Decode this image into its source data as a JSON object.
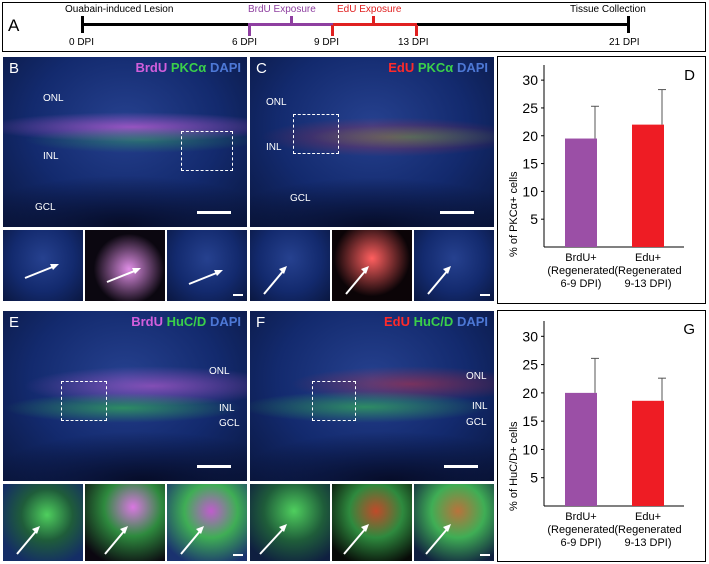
{
  "timeline": {
    "letter": "A",
    "events": [
      {
        "label": "Ouabain-induced Lesion"
      },
      {
        "label": "BrdU Exposure"
      },
      {
        "label": "EdU Exposure"
      },
      {
        "label": "Tissue Collection"
      }
    ],
    "ticks": [
      "0 DPI",
      "6 DPI",
      "9 DPI",
      "13 DPI",
      "21 DPI"
    ],
    "colors": {
      "brdu": "#8e3fa0",
      "edu": "#e02020"
    }
  },
  "panels": {
    "B": {
      "letter": "B",
      "stain1": "BrdU",
      "stain2": "PKCα",
      "stain3": "DAPI",
      "layers": [
        "ONL",
        "INL",
        "GCL"
      ]
    },
    "C": {
      "letter": "C",
      "stain1": "EdU",
      "stain2": "PKCα",
      "stain3": "DAPI",
      "layers": [
        "ONL",
        "INL",
        "GCL"
      ]
    },
    "E": {
      "letter": "E",
      "stain1": "BrdU",
      "stain2": "HuC/D",
      "stain3": "DAPI",
      "layers": [
        "ONL",
        "INL",
        "GCL"
      ]
    },
    "F": {
      "letter": "F",
      "stain1": "EdU",
      "stain2": "HuC/D",
      "stain3": "DAPI",
      "layers": [
        "ONL",
        "INL",
        "GCL"
      ]
    }
  },
  "chart_data": [
    {
      "type": "bar",
      "panel": "D",
      "ylabel": "% of PKCα+ cells",
      "categories": [
        "BrdU+ (Regenerated 6-9 DPI)",
        "Edu+ (Regenerated 9-13 DPI)"
      ],
      "category_lines": [
        [
          "BrdU+",
          "(Regenerated",
          "6-9 DPI)"
        ],
        [
          "Edu+",
          "(Regenerated",
          "9-13 DPI)"
        ]
      ],
      "values": [
        19.5,
        22
      ],
      "errors": [
        5.8,
        6.3
      ],
      "yticks": [
        5,
        10,
        15,
        20,
        25,
        30
      ],
      "ylim": [
        0,
        32
      ],
      "colors": [
        "#9b4fa6",
        "#ee1c24"
      ]
    },
    {
      "type": "bar",
      "panel": "G",
      "ylabel": "% of HuC/D+ cells",
      "categories": [
        "BrdU+ (Regenerated 6-9 DPI)",
        "Edu+ (Regenerated 9-13 DPI)"
      ],
      "category_lines": [
        [
          "BrdU+",
          "(Regenerated",
          "6-9 DPI)"
        ],
        [
          "Edu+",
          "(Regenerated",
          "9-13 DPI)"
        ]
      ],
      "values": [
        20,
        18.6
      ],
      "errors": [
        6.1,
        4
      ],
      "yticks": [
        5,
        10,
        15,
        20,
        25,
        30
      ],
      "ylim": [
        0,
        32
      ],
      "colors": [
        "#9b4fa6",
        "#ee1c24"
      ]
    }
  ]
}
